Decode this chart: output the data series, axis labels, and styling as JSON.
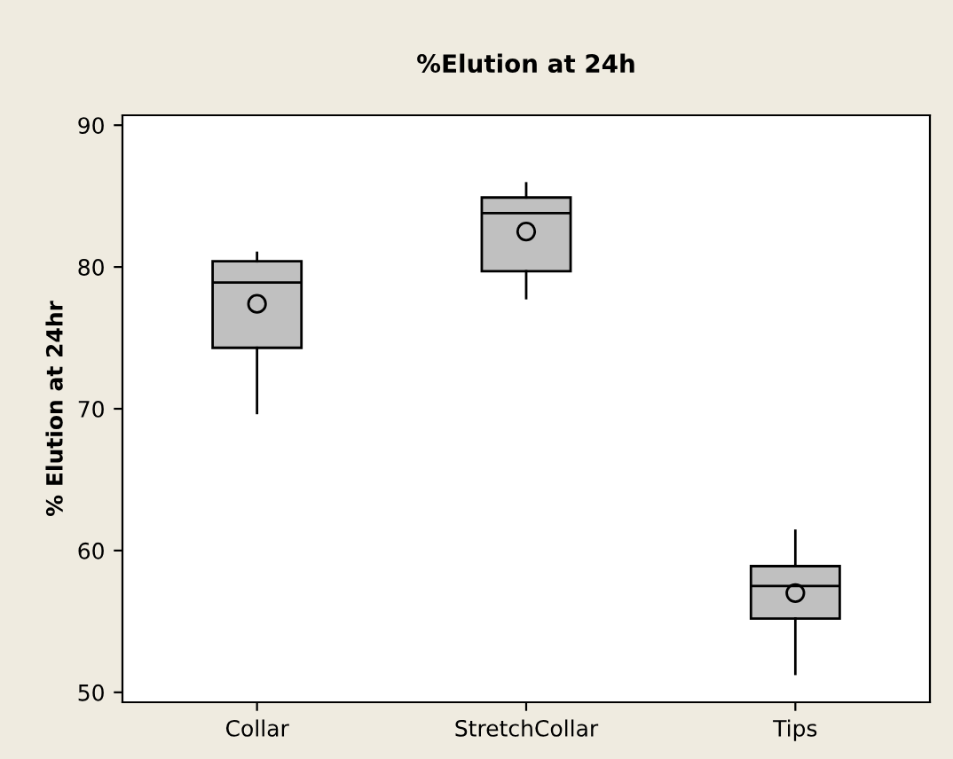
{
  "chart_data": {
    "type": "box",
    "title": "%Elution at 24h",
    "ylabel": "% Elution at 24hr",
    "categories": [
      "Collar",
      "StretchCollar",
      "Tips"
    ],
    "boxes": [
      {
        "low": 69.7,
        "q1": 74.3,
        "median": 78.9,
        "q3": 80.4,
        "high": 81.0,
        "mean": 77.4
      },
      {
        "low": 77.8,
        "q1": 79.7,
        "median": 83.8,
        "q3": 84.9,
        "high": 85.9,
        "mean": 82.5
      },
      {
        "low": 51.3,
        "q1": 55.2,
        "median": 57.5,
        "q3": 58.9,
        "high": 61.4,
        "mean": 57.0
      }
    ],
    "color": "#c0c0c0",
    "ylim": [
      49.3,
      90.7
    ],
    "yticks": [
      50,
      60,
      70,
      80,
      90
    ],
    "grid": false,
    "legend": false
  }
}
